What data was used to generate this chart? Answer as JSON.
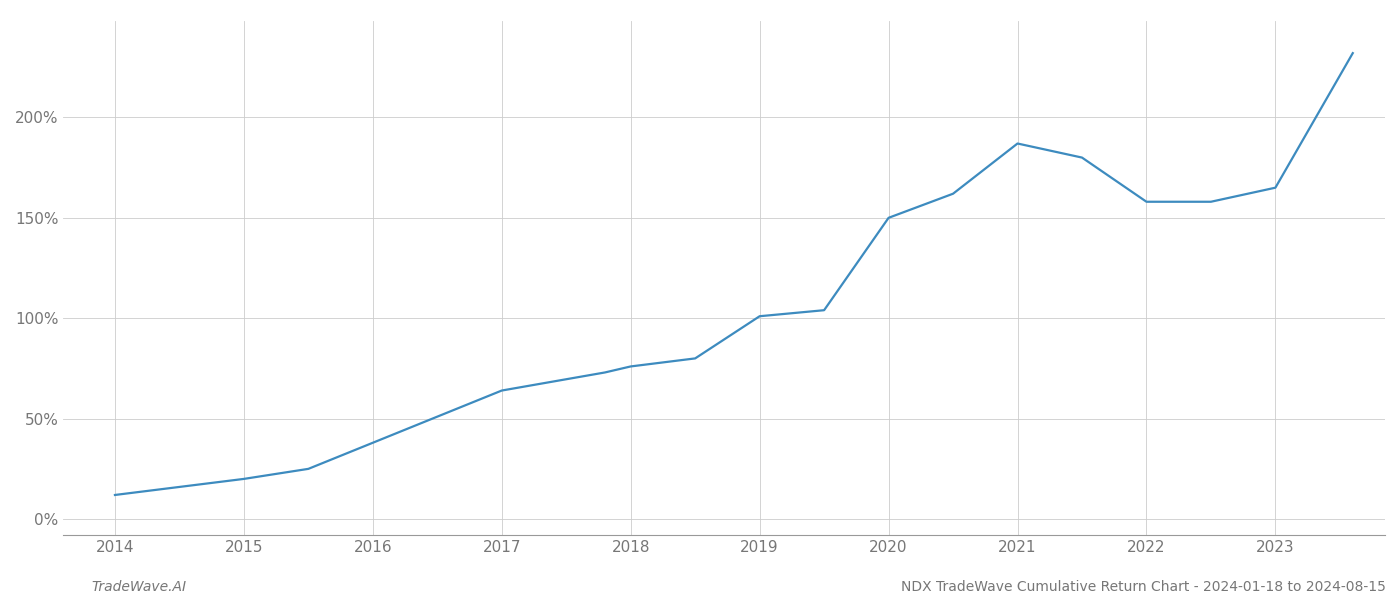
{
  "x_years": [
    2014,
    2015,
    2015.5,
    2016,
    2017,
    2017.8,
    2018,
    2018.5,
    2019,
    2019.5,
    2020,
    2020.5,
    2021,
    2021.5,
    2022,
    2022.5,
    2023,
    2023.6
  ],
  "y_values": [
    12,
    20,
    25,
    38,
    64,
    73,
    76,
    80,
    101,
    104,
    150,
    162,
    187,
    180,
    158,
    158,
    165,
    232
  ],
  "line_color": "#3d8bbf",
  "line_width": 1.6,
  "bg_color": "#ffffff",
  "grid_color": "#cccccc",
  "grid_linewidth": 0.6,
  "footer_left": "TradeWave.AI",
  "footer_right": "NDX TradeWave Cumulative Return Chart - 2024-01-18 to 2024-08-15",
  "xlim": [
    2013.6,
    2023.85
  ],
  "ylim": [
    -8,
    248
  ],
  "yticks": [
    0,
    50,
    100,
    150,
    200
  ],
  "xticks": [
    2014,
    2015,
    2016,
    2017,
    2018,
    2019,
    2020,
    2021,
    2022,
    2023
  ],
  "tick_label_color": "#777777",
  "spine_color": "#999999",
  "footer_fontsize": 10,
  "axis_tick_fontsize": 11
}
